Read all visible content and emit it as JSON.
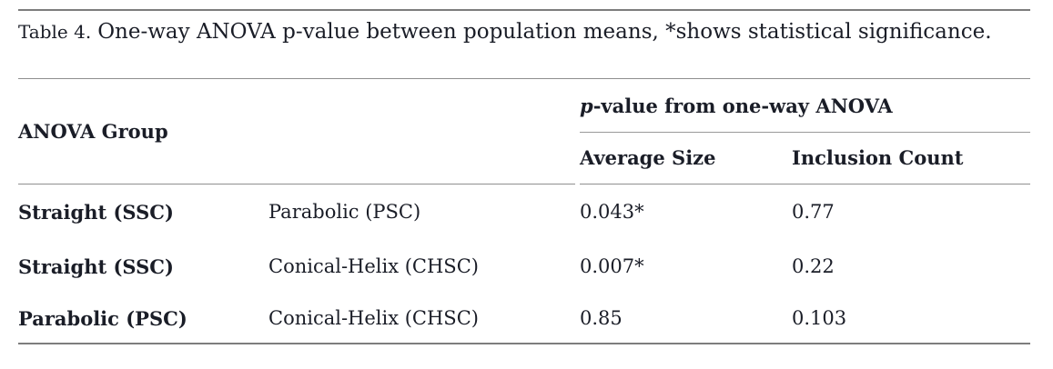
{
  "caption": {
    "label": "Table 4.",
    "text": "One-way ANOVA p-value between population means, *shows statistical significance."
  },
  "table": {
    "group_header": "ANOVA Group",
    "spanner": {
      "italic": "p",
      "rest": "-value from one-way ANOVA"
    },
    "columns": [
      "Average Size",
      "Inclusion Count"
    ],
    "rows": [
      {
        "group_a": "Straight (SSC)",
        "group_b": "Parabolic (PSC)",
        "average_size": "0.043*",
        "inclusion_count": "0.77"
      },
      {
        "group_a": "Straight (SSC)",
        "group_b": "Conical-Helix (CHSC)",
        "average_size": "0.007*",
        "inclusion_count": "0.22"
      },
      {
        "group_a": "Parabolic (PSC)",
        "group_b": "Conical-Helix (CHSC)",
        "average_size": "0.85",
        "inclusion_count": "0.103"
      }
    ]
  },
  "colors": {
    "text": "#1a1d27",
    "rule_strong": "#7d7d7d",
    "rule_light": "#8f8f8f",
    "background": "#ffffff"
  }
}
